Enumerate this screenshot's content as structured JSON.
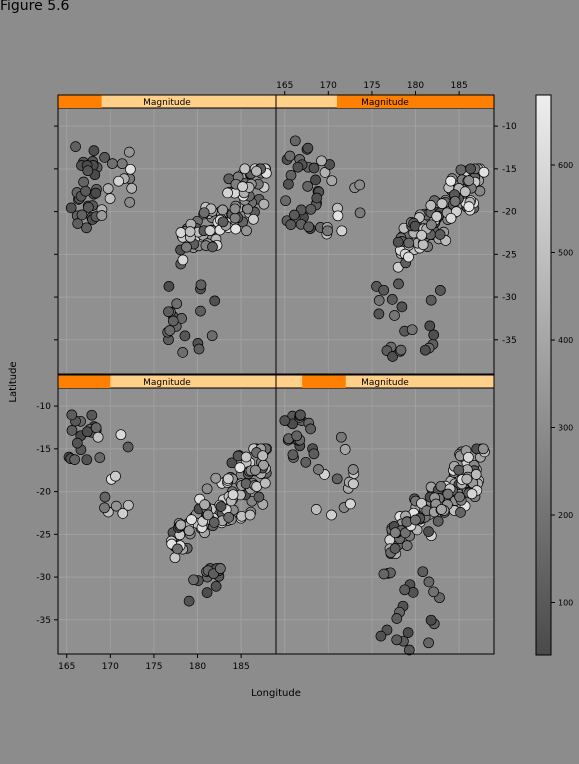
{
  "figure_title": "Figure 5.6",
  "colors": {
    "background": "#8c8c8c",
    "panel": "#909090",
    "strip_base": "#ffd08a",
    "strip_bar": "#ff7f00",
    "grid": "#a0a0a0"
  },
  "chart_data": {
    "type": "scatter",
    "layout": "2x2 trellis (lattice) panels conditioned on Magnitude shingle",
    "xlabel": "Longitude",
    "ylabel": "Latitude",
    "xlim": [
      164,
      189
    ],
    "ylim": [
      -39,
      -8
    ],
    "xticks": [
      165,
      170,
      175,
      180,
      185
    ],
    "yticks": [
      -10,
      -15,
      -20,
      -25,
      -30,
      -35
    ],
    "grid": true,
    "strip_label": "Magnitude",
    "color_variable": "depth",
    "colorkey": {
      "ticks": [
        100,
        200,
        300,
        400,
        500,
        600
      ],
      "range": [
        40,
        680
      ],
      "low_color": "#4a4a4a",
      "high_color": "#eeeeee",
      "placement": "right"
    },
    "panels": [
      {
        "name": "Magnitude low",
        "strip_interval": [
          0.0,
          0.2
        ],
        "clusters": [
          {
            "lon": [
              165.5,
              168.5
            ],
            "lat": [
              -23,
              -11
            ],
            "depth": [
              40,
              160
            ],
            "n": 30
          },
          {
            "lon": [
              169,
              173
            ],
            "lat": [
              -23,
              -13
            ],
            "depth": [
              50,
              620
            ],
            "n": 14
          },
          {
            "lon": [
              178,
              188
            ],
            "lat": [
              -28,
              -15
            ],
            "depth": [
              50,
              650
            ],
            "n": 115
          },
          {
            "lon": [
              176.5,
              183
            ],
            "lat": [
              -37,
              -28
            ],
            "depth": [
              40,
              200
            ],
            "n": 20
          }
        ]
      },
      {
        "name": "Magnitude mid-high",
        "strip_interval": [
          0.28,
          1.0
        ],
        "clusters": [
          {
            "lon": [
              165,
              169
            ],
            "lat": [
              -22,
              -11
            ],
            "depth": [
              40,
              180
            ],
            "n": 30
          },
          {
            "lon": [
              169,
              174
            ],
            "lat": [
              -23,
              -13
            ],
            "depth": [
              60,
              640
            ],
            "n": 14
          },
          {
            "lon": [
              178,
              188
            ],
            "lat": [
              -28,
              -15
            ],
            "depth": [
              50,
              650
            ],
            "n": 120
          },
          {
            "lon": [
              175.5,
              183
            ],
            "lat": [
              -37.5,
              -28
            ],
            "depth": [
              40,
              220
            ],
            "n": 22
          }
        ]
      },
      {
        "name": "Magnitude lower-mid",
        "strip_interval": [
          0.0,
          0.24
        ],
        "clusters": [
          {
            "lon": [
              165,
              168.5
            ],
            "lat": [
              -17,
              -11
            ],
            "depth": [
              40,
              160
            ],
            "n": 18
          },
          {
            "lon": [
              168.5,
              173
            ],
            "lat": [
              -23,
              -13
            ],
            "depth": [
              60,
              640
            ],
            "n": 12
          },
          {
            "lon": [
              177,
              188
            ],
            "lat": [
              -30,
              -15
            ],
            "depth": [
              50,
              650
            ],
            "n": 130
          },
          {
            "lon": [
              179,
              183
            ],
            "lat": [
              -35,
              -29
            ],
            "depth": [
              40,
              180
            ],
            "n": 15
          }
        ]
      },
      {
        "name": "Magnitude mid",
        "strip_interval": [
          0.12,
          0.32
        ],
        "clusters": [
          {
            "lon": [
              165,
              168.5
            ],
            "lat": [
              -17,
              -11
            ],
            "depth": [
              40,
              160
            ],
            "n": 22
          },
          {
            "lon": [
              168,
              173
            ],
            "lat": [
              -23,
              -13
            ],
            "depth": [
              60,
              640
            ],
            "n": 14
          },
          {
            "lon": [
              177,
              188
            ],
            "lat": [
              -30,
              -15
            ],
            "depth": [
              50,
              650
            ],
            "n": 135
          },
          {
            "lon": [
              176,
              183
            ],
            "lat": [
              -39,
              -29
            ],
            "depth": [
              40,
              220
            ],
            "n": 22
          }
        ]
      }
    ]
  }
}
